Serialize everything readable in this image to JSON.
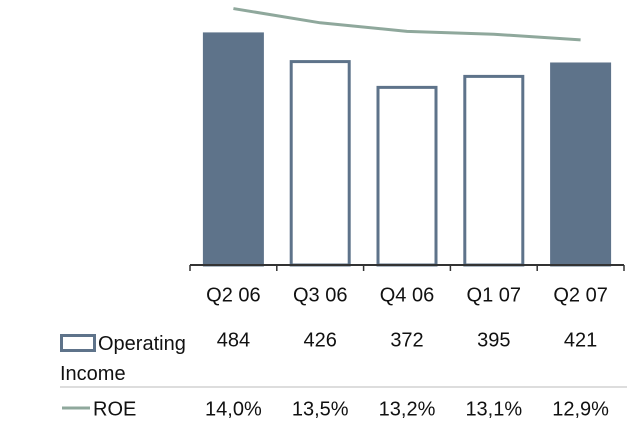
{
  "chart_data": {
    "type": "bar",
    "categories": [
      "Q2 06",
      "Q3 06",
      "Q4 06",
      "Q1 07",
      "Q2 07"
    ],
    "series": [
      {
        "name": "Operating Income",
        "type": "bar",
        "color": "#5e738a",
        "fill_colors": [
          "#5e738a",
          "#ffffff",
          "#ffffff",
          "#ffffff",
          "#5e738a"
        ],
        "values": [
          484,
          426,
          372,
          395,
          421
        ]
      },
      {
        "name": "ROE",
        "type": "line",
        "axis": "y2",
        "color": "#8fa89c",
        "values": [
          14.0,
          13.5,
          13.2,
          13.1,
          12.9
        ],
        "value_labels": [
          "14,0%",
          "13,5%",
          "13,2%",
          "13,1%",
          "12,9%"
        ]
      }
    ],
    "ylim": [
      0,
      555
    ],
    "y2lim": [
      5,
      14.3
    ]
  }
}
